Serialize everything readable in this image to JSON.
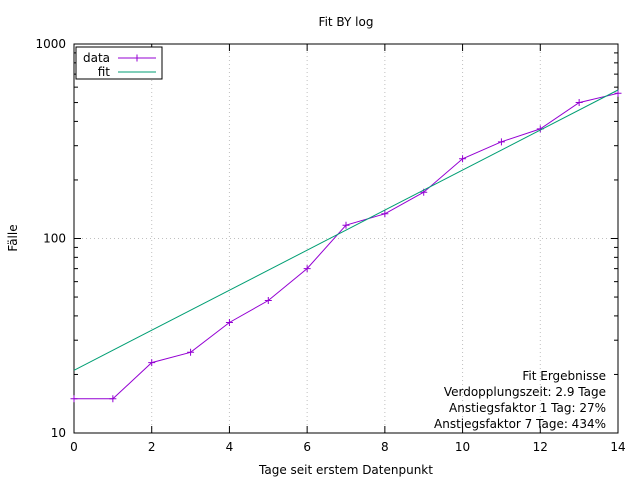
{
  "chart_data": {
    "type": "line",
    "title": "Fit BY log",
    "xlabel": "Tage seit erstem Datenpunkt",
    "ylabel": "Fälle",
    "xlim": [
      0,
      14
    ],
    "ylim": [
      10,
      1000
    ],
    "y_scale": "log",
    "grid": true,
    "legend_position": "top-left",
    "x_ticks": [
      "0",
      "2",
      "4",
      "6",
      "8",
      "10",
      "12",
      "14"
    ],
    "y_ticks": [
      "10",
      "100",
      "1000"
    ],
    "series": [
      {
        "name": "data",
        "color": "#9400d3",
        "marker": "+",
        "x": [
          0,
          1,
          2,
          3,
          4,
          5,
          6,
          7,
          8,
          9,
          10,
          11,
          12,
          13,
          14
        ],
        "y": [
          15,
          15,
          23,
          26,
          37,
          48,
          70,
          117,
          134,
          173,
          257,
          314,
          366,
          500,
          558
        ]
      },
      {
        "name": "fit",
        "color": "#009e73",
        "x": [
          0,
          14
        ],
        "y": [
          21,
          580
        ]
      }
    ],
    "annotations": [
      "Fit Ergebnisse",
      "Verdopplungszeit: 2.9 Tage",
      "Anstiegsfaktor 1 Tag: 27%",
      "Anstiegsfaktor 7 Tage: 434%"
    ]
  }
}
